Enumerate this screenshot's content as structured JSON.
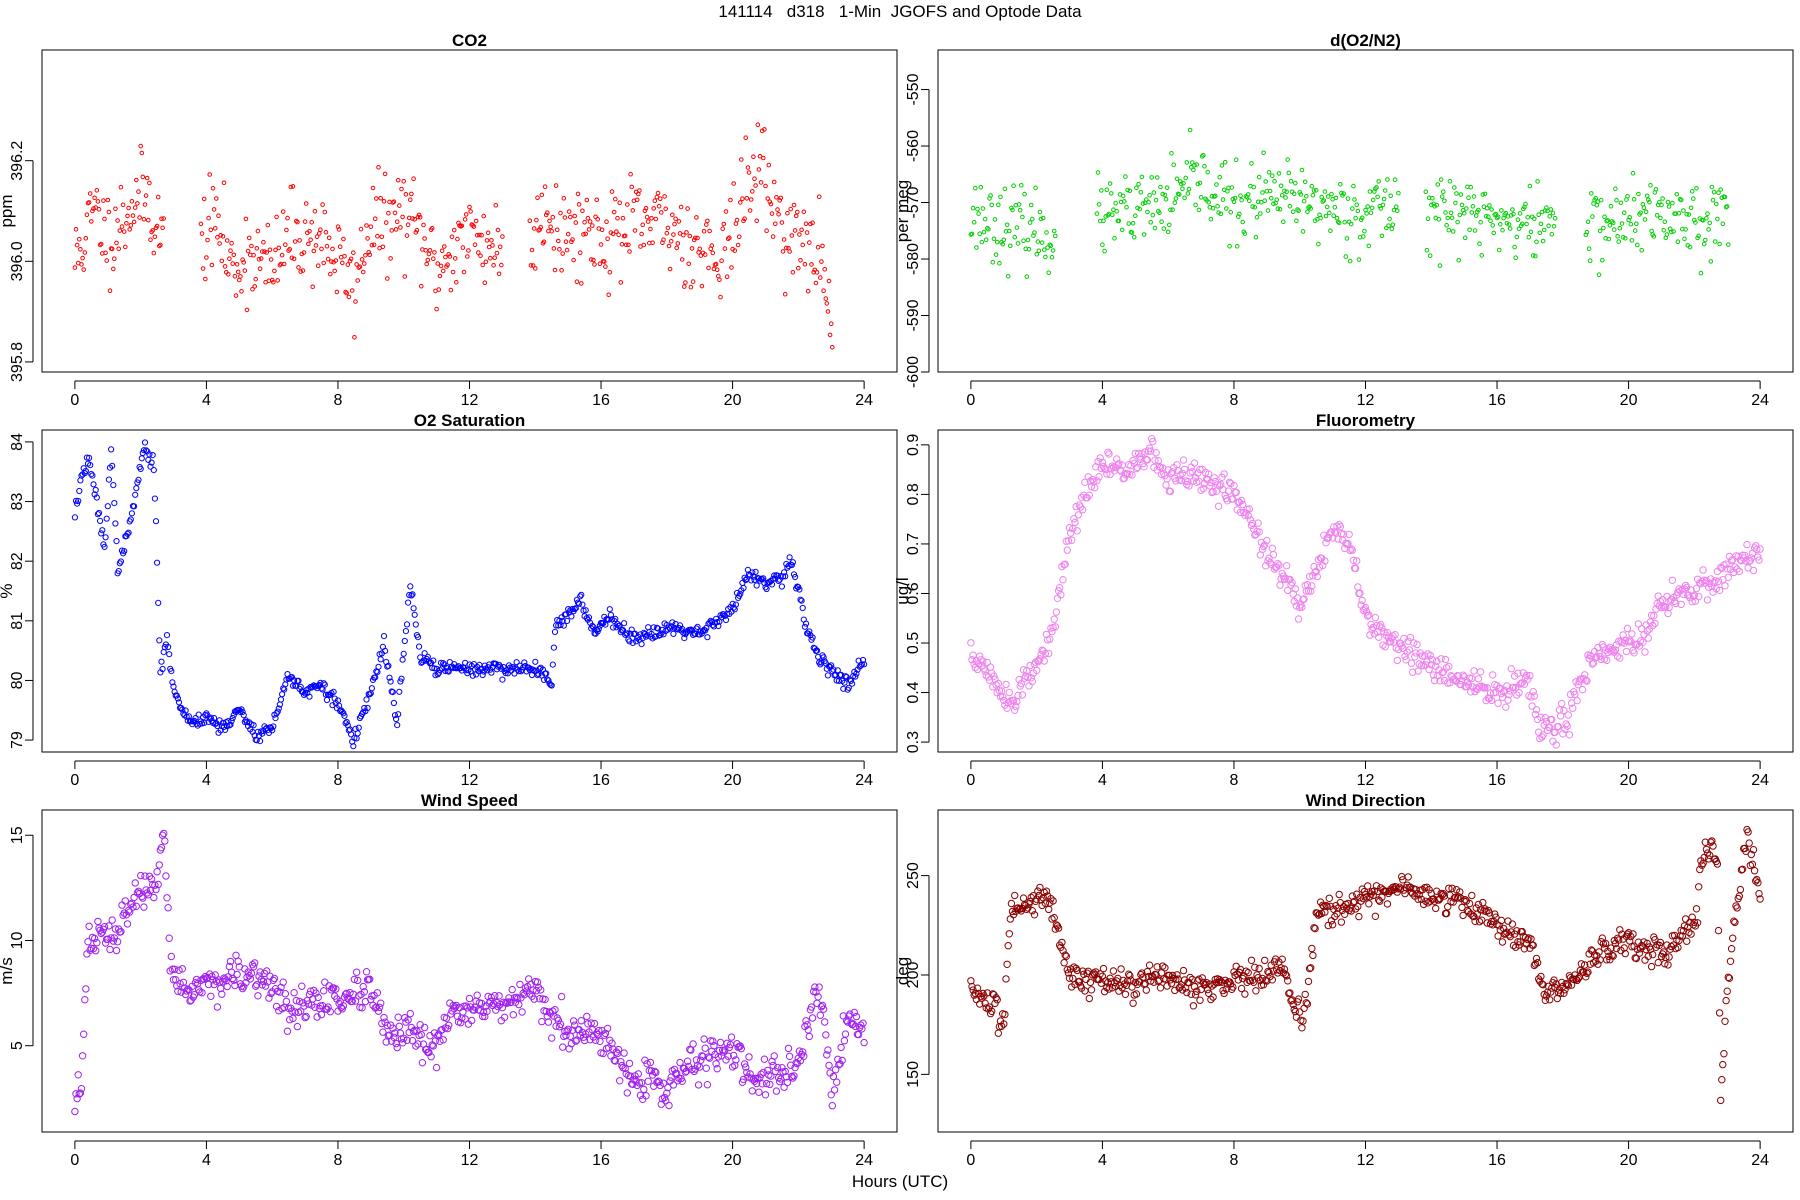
{
  "figure": {
    "title": "141114   d318   1-Min  JGOFS and Optode Data",
    "xlabel": "Hours (UTC)"
  },
  "chart_data": [
    {
      "id": "co2",
      "type": "scatter",
      "title": "CO2",
      "ylabel": "ppm",
      "xlim": [
        -1,
        25
      ],
      "ylim": [
        395.78,
        396.42
      ],
      "xticks": [
        0,
        4,
        8,
        12,
        16,
        20,
        24
      ],
      "xtick_labels": [
        "0",
        "4",
        "8",
        "12",
        "16",
        "20",
        "24"
      ],
      "yticks": [
        395.8,
        396.0,
        396.2
      ],
      "ytick_labels": [
        "395.8",
        "396.0",
        "396.2"
      ],
      "color": "#ff0000",
      "marker_size": 1.8,
      "gaps": [
        [
          2.7,
          3.8
        ],
        [
          13.0,
          13.8
        ]
      ],
      "noise": 0.075,
      "seed": 11,
      "profile": [
        [
          0,
          396.0
        ],
        [
          0.3,
          396.05
        ],
        [
          0.6,
          396.1
        ],
        [
          1.0,
          396.05
        ],
        [
          1.4,
          396.08
        ],
        [
          1.8,
          396.12
        ],
        [
          2.2,
          396.13
        ],
        [
          2.6,
          396.05
        ],
        [
          3.9,
          396.05
        ],
        [
          4.3,
          396.08
        ],
        [
          4.8,
          395.98
        ],
        [
          5.3,
          396.02
        ],
        [
          6.0,
          395.98
        ],
        [
          6.5,
          396.05
        ],
        [
          7.0,
          396.05
        ],
        [
          7.5,
          396.05
        ],
        [
          8.0,
          396.0
        ],
        [
          8.5,
          395.95
        ],
        [
          9.0,
          396.08
        ],
        [
          9.5,
          396.07
        ],
        [
          10.0,
          396.1
        ],
        [
          10.5,
          396.05
        ],
        [
          11.0,
          395.98
        ],
        [
          11.5,
          396.03
        ],
        [
          12.0,
          396.05
        ],
        [
          12.5,
          396.04
        ],
        [
          13.0,
          396.02
        ],
        [
          13.8,
          396.02
        ],
        [
          14.3,
          396.12
        ],
        [
          14.8,
          396.05
        ],
        [
          15.5,
          396.07
        ],
        [
          16.0,
          396.05
        ],
        [
          17.0,
          396.07
        ],
        [
          18.0,
          396.07
        ],
        [
          18.5,
          396.05
        ],
        [
          19.0,
          396.03
        ],
        [
          19.5,
          396.02
        ],
        [
          20.0,
          396.05
        ],
        [
          20.5,
          396.15
        ],
        [
          20.8,
          396.2
        ],
        [
          21.3,
          396.1
        ],
        [
          21.8,
          396.05
        ],
        [
          22.3,
          396.02
        ],
        [
          22.7,
          396.0
        ],
        [
          23.0,
          395.9
        ]
      ]
    },
    {
      "id": "do2n2",
      "type": "scatter",
      "title": "d(O2/N2)",
      "ylabel": "per meg",
      "xlim": [
        -1,
        25
      ],
      "ylim": [
        -600,
        -543
      ],
      "xticks": [
        0,
        4,
        8,
        12,
        16,
        20,
        24
      ],
      "xtick_labels": [
        "0",
        "4",
        "8",
        "12",
        "16",
        "20",
        "24"
      ],
      "yticks": [
        -600,
        -590,
        -580,
        -570,
        -560,
        -550
      ],
      "ytick_labels": [
        "-600",
        "-590",
        "-580",
        "-570",
        "-560",
        "-550"
      ],
      "color": "#00d000",
      "marker_size": 1.8,
      "gaps": [
        [
          2.6,
          3.8
        ],
        [
          13.0,
          13.8
        ],
        [
          17.8,
          18.7
        ]
      ],
      "noise": 5.5,
      "seed": 23,
      "profile": [
        [
          0,
          -572
        ],
        [
          1,
          -574
        ],
        [
          2,
          -575
        ],
        [
          2.6,
          -576
        ],
        [
          3.8,
          -573
        ],
        [
          5,
          -572
        ],
        [
          6,
          -570
        ],
        [
          7,
          -566
        ],
        [
          8,
          -571
        ],
        [
          9,
          -569
        ],
        [
          10,
          -570
        ],
        [
          11,
          -571
        ],
        [
          12,
          -572
        ],
        [
          13,
          -570
        ],
        [
          13.8,
          -571
        ],
        [
          15,
          -572
        ],
        [
          16,
          -573
        ],
        [
          17,
          -574
        ],
        [
          17.8,
          -573
        ],
        [
          18.7,
          -574
        ],
        [
          20,
          -573
        ],
        [
          21,
          -572
        ],
        [
          22,
          -573
        ],
        [
          23,
          -572
        ]
      ]
    },
    {
      "id": "o2sat",
      "type": "scatter",
      "title": "O2 Saturation",
      "ylabel": "%",
      "xlim": [
        -1,
        25
      ],
      "ylim": [
        78.8,
        84.2
      ],
      "xticks": [
        0,
        4,
        8,
        12,
        16,
        20,
        24
      ],
      "xtick_labels": [
        "0",
        "4",
        "8",
        "12",
        "16",
        "20",
        "24"
      ],
      "yticks": [
        79,
        80,
        81,
        82,
        83,
        84
      ],
      "ytick_labels": [
        "79",
        "80",
        "81",
        "82",
        "83",
        "84"
      ],
      "color": "#0000ff",
      "marker_size": 2.6,
      "gaps": [],
      "noise": 0.1,
      "seed": 37,
      "profile": [
        [
          0,
          82.8
        ],
        [
          0.2,
          83.4
        ],
        [
          0.4,
          83.7
        ],
        [
          0.6,
          83.2
        ],
        [
          0.9,
          82.2
        ],
        [
          1.1,
          83.9
        ],
        [
          1.3,
          81.9
        ],
        [
          1.6,
          82.4
        ],
        [
          1.9,
          83.3
        ],
        [
          2.1,
          83.9
        ],
        [
          2.4,
          83.6
        ],
        [
          2.5,
          82.0
        ],
        [
          2.6,
          80.1
        ],
        [
          2.8,
          80.8
        ],
        [
          3.0,
          79.8
        ],
        [
          3.5,
          79.3
        ],
        [
          4.0,
          79.4
        ],
        [
          4.5,
          79.2
        ],
        [
          5.0,
          79.5
        ],
        [
          5.5,
          79.1
        ],
        [
          6.0,
          79.2
        ],
        [
          6.5,
          80.1
        ],
        [
          7.0,
          79.8
        ],
        [
          7.5,
          79.9
        ],
        [
          8.0,
          79.6
        ],
        [
          8.5,
          79.0
        ],
        [
          9.0,
          79.8
        ],
        [
          9.4,
          80.6
        ],
        [
          9.8,
          79.3
        ],
        [
          10.2,
          81.6
        ],
        [
          10.5,
          80.4
        ],
        [
          11.0,
          80.2
        ],
        [
          12,
          80.2
        ],
        [
          13,
          80.2
        ],
        [
          14,
          80.2
        ],
        [
          14.5,
          80.0
        ],
        [
          14.6,
          80.9
        ],
        [
          15.0,
          81.1
        ],
        [
          15.4,
          81.3
        ],
        [
          15.8,
          80.8
        ],
        [
          16.2,
          81.1
        ],
        [
          16.6,
          80.9
        ],
        [
          17,
          80.7
        ],
        [
          18,
          80.9
        ],
        [
          19,
          80.8
        ],
        [
          20,
          81.2
        ],
        [
          20.5,
          81.8
        ],
        [
          21.0,
          81.6
        ],
        [
          21.5,
          81.7
        ],
        [
          21.8,
          82.0
        ],
        [
          22.2,
          81.0
        ],
        [
          22.5,
          80.5
        ],
        [
          23.0,
          80.2
        ],
        [
          23.5,
          79.9
        ],
        [
          24,
          80.4
        ]
      ]
    },
    {
      "id": "fluor",
      "type": "scatter",
      "title": "Fluorometry",
      "ylabel": "ug/l",
      "xlim": [
        -1,
        25
      ],
      "ylim": [
        0.28,
        0.93
      ],
      "xticks": [
        0,
        4,
        8,
        12,
        16,
        20,
        24
      ],
      "xtick_labels": [
        "0",
        "4",
        "8",
        "12",
        "16",
        "20",
        "24"
      ],
      "yticks": [
        0.3,
        0.4,
        0.5,
        0.6,
        0.7,
        0.8,
        0.9
      ],
      "ytick_labels": [
        "0.3",
        "0.4",
        "0.5",
        "0.6",
        "0.7",
        "0.8",
        "0.9"
      ],
      "color": "#ee82ee",
      "marker_size": 3.2,
      "gaps": [],
      "noise": 0.025,
      "seed": 51,
      "profile": [
        [
          0,
          0.48
        ],
        [
          0.5,
          0.44
        ],
        [
          1.0,
          0.4
        ],
        [
          1.3,
          0.37
        ],
        [
          1.6,
          0.42
        ],
        [
          2.0,
          0.45
        ],
        [
          2.5,
          0.52
        ],
        [
          3.0,
          0.72
        ],
        [
          3.5,
          0.8
        ],
        [
          4.0,
          0.86
        ],
        [
          4.5,
          0.85
        ],
        [
          5.0,
          0.87
        ],
        [
          5.5,
          0.88
        ],
        [
          6.0,
          0.83
        ],
        [
          6.5,
          0.84
        ],
        [
          7.0,
          0.83
        ],
        [
          8.0,
          0.8
        ],
        [
          8.5,
          0.75
        ],
        [
          9.0,
          0.68
        ],
        [
          9.5,
          0.63
        ],
        [
          10.0,
          0.58
        ],
        [
          10.5,
          0.65
        ],
        [
          11.0,
          0.73
        ],
        [
          11.5,
          0.7
        ],
        [
          12.0,
          0.55
        ],
        [
          12.5,
          0.52
        ],
        [
          13.0,
          0.5
        ],
        [
          14.0,
          0.45
        ],
        [
          15.0,
          0.42
        ],
        [
          16.0,
          0.4
        ],
        [
          17.0,
          0.42
        ],
        [
          17.3,
          0.32
        ],
        [
          17.8,
          0.33
        ],
        [
          18.2,
          0.36
        ],
        [
          18.5,
          0.42
        ],
        [
          19.0,
          0.48
        ],
        [
          20.0,
          0.5
        ],
        [
          20.5,
          0.52
        ],
        [
          21.0,
          0.58
        ],
        [
          22.0,
          0.6
        ],
        [
          23.0,
          0.65
        ],
        [
          24.0,
          0.68
        ]
      ]
    },
    {
      "id": "windspeed",
      "type": "scatter",
      "title": "Wind Speed",
      "ylabel": "m/s",
      "xlim": [
        -1,
        25
      ],
      "ylim": [
        0.9,
        16.2
      ],
      "xticks": [
        0,
        4,
        8,
        12,
        16,
        20,
        24
      ],
      "xtick_labels": [
        "0",
        "4",
        "8",
        "12",
        "16",
        "20",
        "24"
      ],
      "yticks": [
        5,
        10,
        15
      ],
      "ytick_labels": [
        "5",
        "10",
        "15"
      ],
      "color": "#a020f0",
      "marker_size": 3.2,
      "gaps": [],
      "noise": 0.7,
      "seed": 67,
      "profile": [
        [
          0,
          2.3
        ],
        [
          0.2,
          3.5
        ],
        [
          0.4,
          9.8
        ],
        [
          0.8,
          10.3
        ],
        [
          1.2,
          10.0
        ],
        [
          1.6,
          11.5
        ],
        [
          2.0,
          12.5
        ],
        [
          2.5,
          12.2
        ],
        [
          2.7,
          15.0
        ],
        [
          2.9,
          8.8
        ],
        [
          3.5,
          7.5
        ],
        [
          4.0,
          8.0
        ],
        [
          5.0,
          8.2
        ],
        [
          6.0,
          8.0
        ],
        [
          6.5,
          6.5
        ],
        [
          7.0,
          7.0
        ],
        [
          8.0,
          7.2
        ],
        [
          9.0,
          7.5
        ],
        [
          9.5,
          5.5
        ],
        [
          10,
          5.5
        ],
        [
          11,
          4.8
        ],
        [
          11.5,
          6.8
        ],
        [
          12,
          6.8
        ],
        [
          13,
          6.8
        ],
        [
          14,
          7.5
        ],
        [
          15,
          5.5
        ],
        [
          16,
          5.5
        ],
        [
          17,
          3.5
        ],
        [
          18,
          3.0
        ],
        [
          19,
          4.5
        ],
        [
          20,
          4.8
        ],
        [
          20.5,
          3.5
        ],
        [
          21,
          3.2
        ],
        [
          22,
          4.0
        ],
        [
          22.5,
          7.5
        ],
        [
          22.8,
          6.5
        ],
        [
          23,
          2.5
        ],
        [
          23.5,
          6.5
        ],
        [
          24,
          5.5
        ]
      ]
    },
    {
      "id": "winddir",
      "type": "scatter",
      "title": "Wind Direction",
      "ylabel": "deg",
      "xlim": [
        -1,
        25
      ],
      "ylim": [
        121,
        283
      ],
      "xticks": [
        0,
        4,
        8,
        12,
        16,
        20,
        24
      ],
      "xtick_labels": [
        "0",
        "4",
        "8",
        "12",
        "16",
        "20",
        "24"
      ],
      "yticks": [
        150,
        200,
        250
      ],
      "ytick_labels": [
        "150",
        "200",
        "250"
      ],
      "color": "#8b0000",
      "marker_size": 3.2,
      "gaps": [],
      "noise": 6,
      "seed": 83,
      "profile": [
        [
          0,
          195
        ],
        [
          0.5,
          185
        ],
        [
          1.0,
          175
        ],
        [
          1.2,
          232
        ],
        [
          1.8,
          237
        ],
        [
          2.4,
          240
        ],
        [
          2.7,
          218
        ],
        [
          3.0,
          200
        ],
        [
          4,
          197
        ],
        [
          5,
          195
        ],
        [
          6,
          198
        ],
        [
          7,
          193
        ],
        [
          8,
          198
        ],
        [
          9,
          200
        ],
        [
          9.5,
          205
        ],
        [
          9.9,
          180
        ],
        [
          10.2,
          185
        ],
        [
          10.5,
          230
        ],
        [
          11,
          232
        ],
        [
          12,
          238
        ],
        [
          13,
          243
        ],
        [
          14,
          240
        ],
        [
          15,
          237
        ],
        [
          16,
          225
        ],
        [
          17,
          215
        ],
        [
          17.5,
          190
        ],
        [
          18,
          193
        ],
        [
          19,
          210
        ],
        [
          20,
          217
        ],
        [
          21,
          212
        ],
        [
          22,
          225
        ],
        [
          22.3,
          263
        ],
        [
          22.7,
          260
        ],
        [
          22.8,
          140
        ],
        [
          23.0,
          195
        ],
        [
          23.3,
          235
        ],
        [
          23.6,
          270
        ],
        [
          24,
          238
        ]
      ]
    }
  ]
}
